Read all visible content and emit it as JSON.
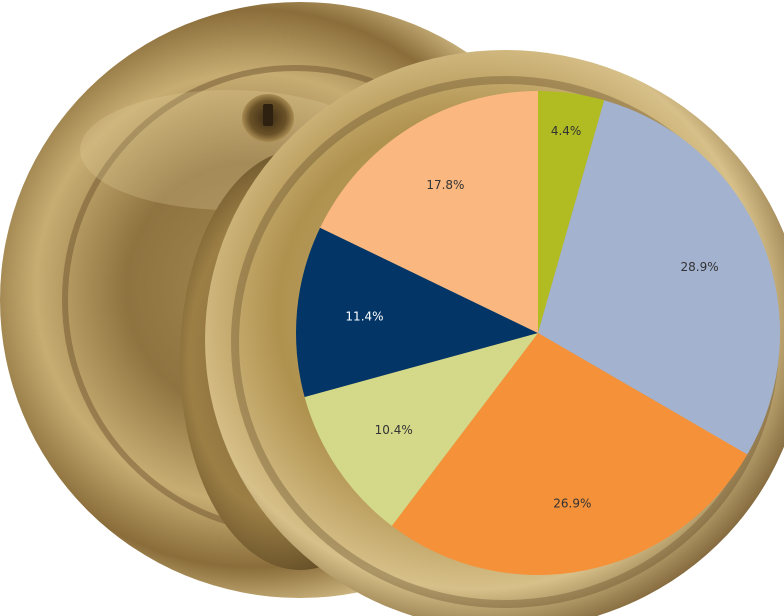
{
  "chart_data": {
    "type": "pie",
    "start_angle_deg": 0,
    "direction": "clockwise",
    "slices": [
      {
        "value": 4.4,
        "label": "4.4%",
        "color": "#b0bc22",
        "label_color": "#333333"
      },
      {
        "value": 28.9,
        "label": "28.9%",
        "color": "#a3b2cf",
        "label_color": "#333333"
      },
      {
        "value": 26.9,
        "label": "26.9%",
        "color": "#f59139",
        "label_color": "#333333"
      },
      {
        "value": 10.4,
        "label": "10.4%",
        "color": "#d4d98a",
        "label_color": "#333333"
      },
      {
        "value": 11.4,
        "label": "11.4%",
        "color": "#033567",
        "label_color": "#ffffff"
      },
      {
        "value": 17.8,
        "label": "17.8%",
        "color": "#fab880",
        "label_color": "#333333"
      }
    ]
  },
  "background": {
    "subject": "antique brass door knob",
    "colors": {
      "brass_light": "#d9c38a",
      "brass_mid": "#a98a4c",
      "brass_dark": "#5e4724",
      "rim_shadow": "#3f2f16"
    }
  }
}
